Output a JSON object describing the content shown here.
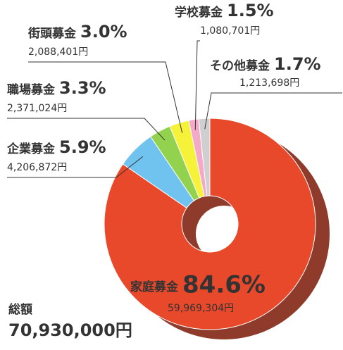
{
  "chart_data": {
    "type": "donut",
    "categories": [
      "家庭募金",
      "企業募金",
      "職場募金",
      "街頭募金",
      "学校募金",
      "その他募金"
    ],
    "values": [
      84.6,
      5.9,
      3.3,
      3.0,
      1.5,
      1.7
    ],
    "value_labels": [
      "84.6%",
      "5.9%",
      "3.3%",
      "3.0%",
      "1.5%",
      "1.7%"
    ],
    "amounts": [
      "59,969,304円",
      "4,206,872円",
      "2,371,024円",
      "2,088,401円",
      "1,080,701円",
      "1,213,698円"
    ],
    "colors": [
      "#e9492b",
      "#6fc3ee",
      "#92d24f",
      "#f6f23a",
      "#f4a9c9",
      "#cfcfcf"
    ],
    "total_label": "総額",
    "total": "70,930,000円"
  }
}
